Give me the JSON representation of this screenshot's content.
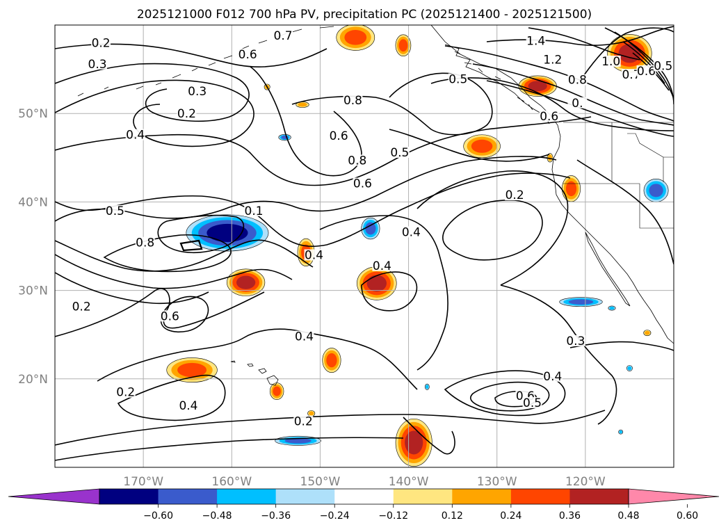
{
  "chart_data": {
    "type": "contour-map",
    "title": "2025121000 F012 700 hPa PV, precipitation PC (2025121400 - 2025121500)",
    "projection": "equirectangular",
    "xlim": [
      -180,
      -110
    ],
    "ylim": [
      10,
      60
    ],
    "grid": true,
    "x_ticks": [
      {
        "value": -170,
        "label": "170°W"
      },
      {
        "value": -160,
        "label": "160°W"
      },
      {
        "value": -150,
        "label": "150°W"
      },
      {
        "value": -140,
        "label": "140°W"
      },
      {
        "value": -130,
        "label": "130°W"
      },
      {
        "value": -120,
        "label": "120°W"
      }
    ],
    "y_ticks": [
      {
        "value": 20,
        "label": "20°N"
      },
      {
        "value": 30,
        "label": "30°N"
      },
      {
        "value": 40,
        "label": "40°N"
      },
      {
        "value": 50,
        "label": "50°N"
      }
    ],
    "colorbar": {
      "orientation": "horizontal",
      "extend": "both",
      "ticks": [
        {
          "value": -0.6,
          "label": "−0.60"
        },
        {
          "value": -0.48,
          "label": "−0.48"
        },
        {
          "value": -0.36,
          "label": "−0.36"
        },
        {
          "value": -0.24,
          "label": "−0.24"
        },
        {
          "value": -0.12,
          "label": "−0.12"
        },
        {
          "value": 0.12,
          "label": "0.12"
        },
        {
          "value": 0.24,
          "label": "0.24"
        },
        {
          "value": 0.36,
          "label": "0.36"
        },
        {
          "value": 0.48,
          "label": "0.48"
        },
        {
          "value": 0.6,
          "label": "0.60"
        }
      ],
      "colors": [
        "#9933cc",
        "#000080",
        "#3a5bcc",
        "#00bfff",
        "#aee0fa",
        "#ffffff",
        "#ffe680",
        "#ffa500",
        "#ff4500",
        "#b22222",
        "#ff88aa"
      ]
    },
    "contour_labels": [
      {
        "text": "0.2",
        "lon": -174.8,
        "lat": 57.7
      },
      {
        "text": "0.3",
        "lon": -175.2,
        "lat": 55.3
      },
      {
        "text": "0.6",
        "lon": -158.2,
        "lat": 56.4
      },
      {
        "text": "0.3",
        "lon": -163.9,
        "lat": 52.2
      },
      {
        "text": "0.2",
        "lon": -165.1,
        "lat": 49.7
      },
      {
        "text": "0.4",
        "lon": -170.9,
        "lat": 47.3
      },
      {
        "text": "0.5",
        "lon": -173.2,
        "lat": 38.7
      },
      {
        "text": "0.8",
        "lon": -169.8,
        "lat": 35.1
      },
      {
        "text": "0.1",
        "lon": -157.5,
        "lat": 38.7
      },
      {
        "text": "0.2",
        "lon": -177.0,
        "lat": 27.9
      },
      {
        "text": "0.6",
        "lon": -167.0,
        "lat": 26.8
      },
      {
        "text": "0.2",
        "lon": -172.0,
        "lat": 18.2
      },
      {
        "text": "0.4",
        "lon": -164.9,
        "lat": 16.7
      },
      {
        "text": "0.7",
        "lon": -154.2,
        "lat": 58.5
      },
      {
        "text": "0.8",
        "lon": -146.3,
        "lat": 51.2
      },
      {
        "text": "0.6",
        "lon": -147.9,
        "lat": 47.2
      },
      {
        "text": "0.8",
        "lon": -145.8,
        "lat": 44.4
      },
      {
        "text": "0.6",
        "lon": -145.2,
        "lat": 41.8
      },
      {
        "text": "0.5",
        "lon": -141.0,
        "lat": 45.3
      },
      {
        "text": "0.4",
        "lon": -150.7,
        "lat": 33.7
      },
      {
        "text": "0.4",
        "lon": -143.0,
        "lat": 32.5
      },
      {
        "text": "0.4",
        "lon": -139.7,
        "lat": 36.3
      },
      {
        "text": "0.4",
        "lon": -151.8,
        "lat": 24.5
      },
      {
        "text": "0.2",
        "lon": -151.9,
        "lat": 14.9
      },
      {
        "text": "0.2",
        "lon": -128.0,
        "lat": 40.5
      },
      {
        "text": "0.5",
        "lon": -134.4,
        "lat": 53.6
      },
      {
        "text": "1.4",
        "lon": -125.6,
        "lat": 57.9
      },
      {
        "text": "1.2",
        "lon": -123.7,
        "lat": 55.8
      },
      {
        "text": "0.8",
        "lon": -120.9,
        "lat": 53.5
      },
      {
        "text": "0.",
        "lon": -120.9,
        "lat": 50.9
      },
      {
        "text": "0.6",
        "lon": -124.1,
        "lat": 49.4
      },
      {
        "text": "1.0",
        "lon": -117.1,
        "lat": 55.6
      },
      {
        "text": "0.7",
        "lon": -114.8,
        "lat": 54.1
      },
      {
        "text": "0.6",
        "lon": -113.1,
        "lat": 54.5
      },
      {
        "text": "0.5",
        "lon": -111.2,
        "lat": 55.1
      },
      {
        "text": "0.3",
        "lon": -121.1,
        "lat": 24.0
      },
      {
        "text": "0.4",
        "lon": -123.7,
        "lat": 20.0
      },
      {
        "text": "0.6",
        "lon": -126.8,
        "lat": 17.8
      },
      {
        "text": "0.5",
        "lon": -126.0,
        "lat": 17.0
      }
    ],
    "positive_areas": [
      {
        "lon": -146.0,
        "lat": 58.6,
        "rx": 2.5,
        "ry": 1.7,
        "max": 0.36
      },
      {
        "lon": -140.6,
        "lat": 57.7,
        "rx": 1.0,
        "ry": 1.4,
        "max": 0.36
      },
      {
        "lon": -115.0,
        "lat": 56.8,
        "rx": 2.8,
        "ry": 2.4,
        "max": 0.48
      },
      {
        "lon": -125.4,
        "lat": 53.1,
        "rx": 2.4,
        "ry": 1.3,
        "max": 0.48
      },
      {
        "lon": -131.7,
        "lat": 46.3,
        "rx": 2.4,
        "ry": 1.5,
        "max": 0.36
      },
      {
        "lon": -121.6,
        "lat": 41.5,
        "rx": 1.2,
        "ry": 1.7,
        "max": 0.36
      },
      {
        "lon": -158.4,
        "lat": 30.9,
        "rx": 2.4,
        "ry": 1.7,
        "max": 0.48
      },
      {
        "lon": -143.6,
        "lat": 30.8,
        "rx": 2.5,
        "ry": 2.1,
        "max": 0.48
      },
      {
        "lon": -151.6,
        "lat": 34.3,
        "rx": 1.1,
        "ry": 1.8,
        "max": 0.36
      },
      {
        "lon": -148.7,
        "lat": 22.1,
        "rx": 1.2,
        "ry": 1.6,
        "max": 0.36
      },
      {
        "lon": -164.5,
        "lat": 21.0,
        "rx": 3.3,
        "ry": 1.6,
        "max": 0.36
      },
      {
        "lon": -154.9,
        "lat": 18.6,
        "rx": 0.9,
        "ry": 1.1,
        "max": 0.36
      },
      {
        "lon": -139.4,
        "lat": 12.8,
        "rx": 2.3,
        "ry": 3.0,
        "max": 0.48
      },
      {
        "lon": -152.0,
        "lat": 51.0,
        "rx": 0.9,
        "ry": 0.4,
        "max": 0.24
      },
      {
        "lon": -151.0,
        "lat": 16.1,
        "rx": 0.5,
        "ry": 0.4,
        "max": 0.24
      },
      {
        "lon": -113.0,
        "lat": 25.2,
        "rx": 0.5,
        "ry": 0.4,
        "max": 0.24
      },
      {
        "lon": -124.0,
        "lat": 45.0,
        "rx": 0.4,
        "ry": 0.6,
        "max": 0.24
      },
      {
        "lon": -156.0,
        "lat": 53.0,
        "rx": 0.4,
        "ry": 0.4,
        "max": 0.24
      }
    ],
    "negative_areas": [
      {
        "lon": -160.5,
        "lat": 36.5,
        "rx": 5.2,
        "ry": 2.3,
        "min": -0.48
      },
      {
        "lon": -144.3,
        "lat": 37.0,
        "rx": 1.2,
        "ry": 1.4,
        "min": -0.36
      },
      {
        "lon": -112.0,
        "lat": 41.3,
        "rx": 1.6,
        "ry": 1.5,
        "min": -0.36
      },
      {
        "lon": -120.5,
        "lat": 28.7,
        "rx": 2.8,
        "ry": 0.6,
        "min": -0.36
      },
      {
        "lon": -152.5,
        "lat": 13.0,
        "rx": 3.0,
        "ry": 0.6,
        "min": -0.36
      },
      {
        "lon": -154.0,
        "lat": 47.3,
        "rx": 0.8,
        "ry": 0.4,
        "min": -0.36
      },
      {
        "lon": -117.0,
        "lat": 28.0,
        "rx": 0.5,
        "ry": 0.3,
        "min": -0.24
      },
      {
        "lon": -115.0,
        "lat": 21.2,
        "rx": 0.4,
        "ry": 0.4,
        "min": -0.24
      },
      {
        "lon": -137.9,
        "lat": 19.1,
        "rx": 0.3,
        "ry": 0.4,
        "min": -0.24
      },
      {
        "lon": -116.0,
        "lat": 14.0,
        "rx": 0.3,
        "ry": 0.3,
        "min": -0.24
      }
    ]
  }
}
